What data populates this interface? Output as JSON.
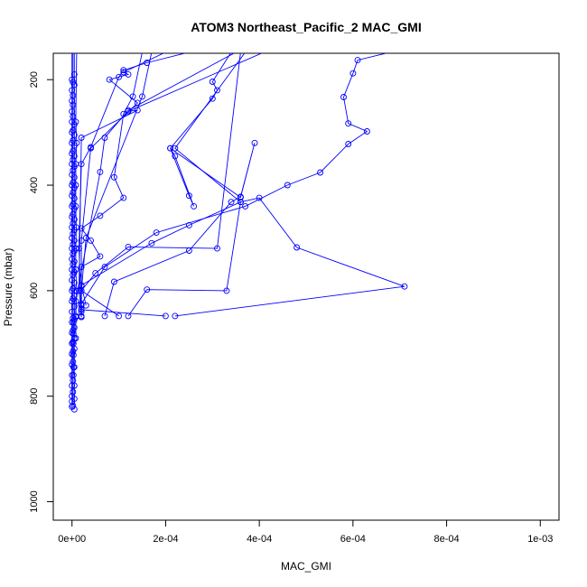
{
  "chart_data": {
    "type": "scatter",
    "title": "ATOM3 Northeast_Pacific_2 MAC_GMI",
    "xlabel": "MAC_GMI",
    "ylabel": "Pressure (mbar)",
    "xlim": [
      -4e-05,
      0.00104
    ],
    "ylim": [
      1035,
      150
    ],
    "y_reversed": true,
    "x_ticks": [
      {
        "value": 0,
        "label": "0e+00"
      },
      {
        "value": 0.0002,
        "label": "2e-04"
      },
      {
        "value": 0.0004,
        "label": "4e-04"
      },
      {
        "value": 0.0006,
        "label": "6e-04"
      },
      {
        "value": 0.0008,
        "label": "8e-04"
      },
      {
        "value": 0.001,
        "label": "1e-03"
      }
    ],
    "y_ticks": [
      {
        "value": 200,
        "label": "200"
      },
      {
        "value": 400,
        "label": "400"
      },
      {
        "value": 600,
        "label": "600"
      },
      {
        "value": 800,
        "label": "800"
      },
      {
        "value": 1000,
        "label": "1000"
      }
    ],
    "grid": false,
    "color": "#0000ff",
    "marker": "open-circle",
    "series": [
      {
        "points": [
          [
            0.0002,
            648
          ],
          [
            2e-05,
            636
          ],
          [
            2e-05,
            628
          ],
          [
            2e-05,
            625
          ],
          [
            7e-05,
            555
          ],
          [
            0.00018,
            490
          ],
          [
            0.00037,
            440
          ],
          [
            0.00046,
            400
          ],
          [
            0.00053,
            376
          ],
          [
            0.00059,
            322
          ],
          [
            0.00063,
            298
          ],
          [
            0.00059,
            283
          ],
          [
            0.00058,
            233
          ],
          [
            0.0006,
            188
          ],
          [
            0.00061,
            163
          ],
          [
            0.00068,
            148
          ]
        ]
      },
      {
        "points": [
          [
            2e-05,
            635
          ],
          [
            2e-05,
            590
          ],
          [
            0.00017,
            510
          ],
          [
            0.00025,
            476
          ],
          [
            0.00036,
            432
          ],
          [
            0.0004,
            424
          ],
          [
            0.00048,
            518
          ],
          [
            0.00071,
            592
          ],
          [
            0.00022,
            648
          ]
        ]
      },
      {
        "points": [
          [
            7e-05,
            648
          ],
          [
            9e-05,
            583
          ],
          [
            0.00025,
            524
          ],
          [
            0.00034,
            432
          ],
          [
            0.00036,
            422
          ],
          [
            0.00039,
            320
          ],
          [
            0.00036,
            423
          ],
          [
            0.00021,
            330
          ],
          [
            0.00022,
            345
          ],
          [
            0.00026,
            440
          ],
          [
            0.00025,
            420
          ],
          [
            0.00021,
            330
          ],
          [
            0.0003,
            236
          ],
          [
            0.00031,
            220
          ],
          [
            0.0003,
            204
          ],
          [
            0.00034,
            148
          ]
        ]
      },
      {
        "points": [
          [
            0.00012,
            648
          ],
          [
            0.00016,
            598
          ],
          [
            0.00033,
            600
          ],
          [
            0.00036,
            432
          ],
          [
            0.00022,
            330
          ],
          [
            0.00037,
            148
          ]
        ]
      },
      {
        "points": [
          [
            0.0001,
            648
          ],
          [
            2e-05,
            600
          ],
          [
            5e-05,
            567
          ],
          [
            0.00012,
            517
          ],
          [
            0.00031,
            520
          ],
          [
            0.00036,
            148
          ]
        ]
      },
      {
        "points": [
          [
            3e-05,
            628
          ],
          [
            2e-05,
            590
          ],
          [
            2e-05,
            555
          ],
          [
            6e-05,
            535
          ],
          [
            4e-05,
            505
          ],
          [
            2e-05,
            482
          ],
          [
            6e-05,
            458
          ],
          [
            0.00011,
            424
          ],
          [
            9e-05,
            385
          ],
          [
            0.00011,
            265
          ],
          [
            0.00013,
            232
          ],
          [
            0.00015,
            148
          ]
        ]
      },
      {
        "points": [
          [
            2e-05,
            640
          ],
          [
            2e-05,
            505
          ],
          [
            4e-05,
            330
          ],
          [
            0.00014,
            244
          ],
          [
            8e-05,
            200
          ],
          [
            0.00012,
            190
          ],
          [
            0.00011,
            186
          ],
          [
            0.0002,
            148
          ]
        ]
      },
      {
        "points": [
          [
            8e-06,
            650
          ],
          [
            8e-06,
            620
          ],
          [
            6e-05,
            375
          ],
          [
            7e-05,
            310
          ],
          [
            0.00012,
            258
          ],
          [
            0.00035,
            148
          ]
        ]
      },
      {
        "points": [
          [
            2e-05,
            650
          ],
          [
            1.5e-05,
            520
          ],
          [
            2e-05,
            360
          ],
          [
            4e-05,
            328
          ],
          [
            0.0001,
            195
          ],
          [
            0.00011,
            182
          ],
          [
            0.00016,
            168
          ],
          [
            0.00025,
            148
          ]
        ]
      },
      {
        "points": [
          [
            2e-05,
            648
          ],
          [
            1.5e-05,
            600
          ],
          [
            2e-05,
            310
          ],
          [
            0.00014,
            258
          ],
          [
            0.00012,
            260
          ],
          [
            0.00041,
            148
          ]
        ]
      },
      {
        "points": [
          [
            2e-05,
            650
          ],
          [
            2e-05,
            600
          ],
          [
            3e-05,
            500
          ],
          [
            0.00015,
            232
          ],
          [
            0.00017,
            148
          ]
        ]
      },
      {
        "points": [
          [
            0,
            820
          ],
          [
            0,
            810
          ],
          [
            0,
            800
          ],
          [
            0,
            780
          ],
          [
            0,
            760
          ],
          [
            0,
            740
          ],
          [
            0,
            720
          ],
          [
            0,
            700
          ],
          [
            0,
            680
          ],
          [
            0,
            660
          ],
          [
            0,
            640
          ],
          [
            0,
            620
          ],
          [
            0,
            600
          ],
          [
            0,
            580
          ],
          [
            0,
            560
          ],
          [
            0,
            540
          ],
          [
            0,
            520
          ],
          [
            0,
            500
          ],
          [
            0,
            480
          ],
          [
            0,
            460
          ],
          [
            0,
            440
          ],
          [
            0,
            420
          ],
          [
            0,
            400
          ],
          [
            0,
            380
          ],
          [
            0,
            360
          ],
          [
            0,
            340
          ],
          [
            0,
            320
          ],
          [
            0,
            300
          ],
          [
            0,
            280
          ],
          [
            0,
            260
          ],
          [
            0,
            240
          ],
          [
            0,
            220
          ],
          [
            0,
            200
          ],
          [
            0,
            148
          ]
        ]
      },
      {
        "points": [
          [
            5e-06,
            825
          ],
          [
            5e-06,
            805
          ],
          [
            5e-06,
            780
          ],
          [
            5e-06,
            745
          ],
          [
            5e-06,
            710
          ],
          [
            5e-06,
            690
          ],
          [
            5e-06,
            670
          ],
          [
            5e-06,
            655
          ],
          [
            5e-06,
            630
          ],
          [
            5e-06,
            610
          ],
          [
            5e-06,
            585
          ],
          [
            5e-06,
            565
          ],
          [
            5e-06,
            545
          ],
          [
            5e-06,
            525
          ],
          [
            5e-06,
            505
          ],
          [
            5e-06,
            485
          ],
          [
            5e-06,
            465
          ],
          [
            5e-06,
            445
          ],
          [
            5e-06,
            425
          ],
          [
            5e-06,
            405
          ],
          [
            5e-06,
            385
          ],
          [
            5e-06,
            365
          ],
          [
            5e-06,
            345
          ],
          [
            5e-06,
            325
          ],
          [
            5e-06,
            305
          ],
          [
            5e-06,
            285
          ],
          [
            5e-06,
            210
          ],
          [
            5e-06,
            190
          ],
          [
            5e-06,
            148
          ]
        ]
      },
      {
        "points": [
          [
            2e-06,
            818
          ],
          [
            2e-06,
            792
          ],
          [
            2e-06,
            770
          ],
          [
            2e-06,
            735
          ],
          [
            2e-06,
            715
          ],
          [
            2e-06,
            697
          ],
          [
            2e-06,
            675
          ],
          [
            2e-06,
            652
          ],
          [
            2e-06,
            615
          ],
          [
            2e-06,
            596
          ],
          [
            2e-06,
            570
          ],
          [
            2e-06,
            550
          ],
          [
            2e-06,
            530
          ],
          [
            2e-06,
            512
          ],
          [
            2e-06,
            492
          ],
          [
            2e-06,
            472
          ],
          [
            2e-06,
            455
          ],
          [
            2e-06,
            436
          ],
          [
            2e-06,
            414
          ],
          [
            2e-06,
            395
          ],
          [
            2e-06,
            372
          ],
          [
            2e-06,
            352
          ],
          [
            2e-06,
            335
          ],
          [
            2e-06,
            315
          ],
          [
            2e-06,
            296
          ],
          [
            2e-06,
            270
          ],
          [
            2e-06,
            248
          ],
          [
            2e-06,
            230
          ],
          [
            2e-06,
            205
          ],
          [
            2e-06,
            148
          ]
        ]
      },
      {
        "points": [
          [
            8e-06,
            690
          ],
          [
            8e-06,
            648
          ],
          [
            1e-05,
            600
          ],
          [
            8e-06,
            560
          ],
          [
            8e-06,
            520
          ],
          [
            9e-06,
            480
          ],
          [
            8e-06,
            440
          ],
          [
            8e-06,
            400
          ],
          [
            8e-06,
            360
          ],
          [
            1e-05,
            320
          ],
          [
            8e-06,
            280
          ],
          [
            1e-05,
            148
          ]
        ]
      },
      {
        "points": [
          [
            3e-06,
            760
          ],
          [
            3e-06,
            745
          ],
          [
            3e-06,
            722
          ],
          [
            3e-06,
            700
          ],
          [
            3e-06,
            682
          ],
          [
            3e-06,
            660
          ]
        ]
      }
    ]
  }
}
